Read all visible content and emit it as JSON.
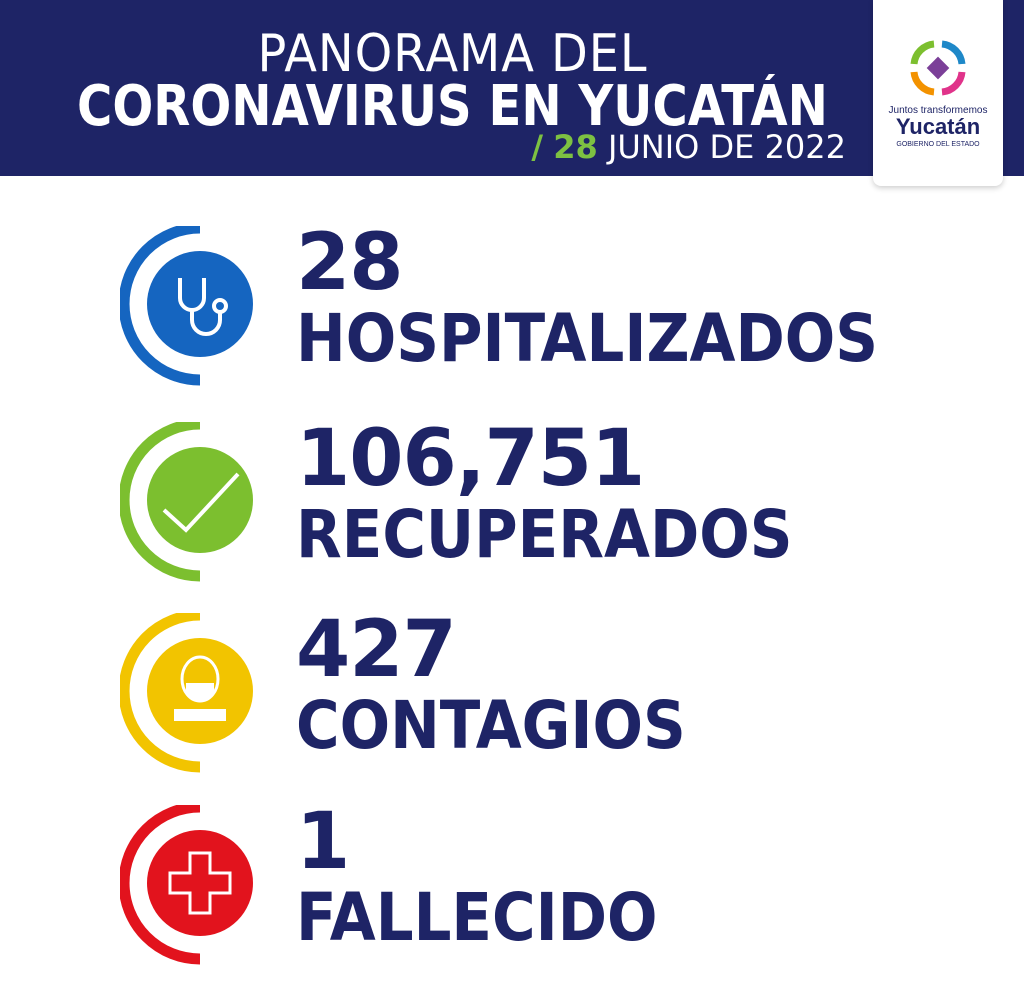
{
  "header": {
    "title_line1": "PANORAMA DEL",
    "title_line2": "CORONAVIRUS EN YUCATÁN",
    "date_slash": "/",
    "date_day": "28",
    "date_rest": "JUNIO DE 2022"
  },
  "logo": {
    "tagline": "Juntos transformemos",
    "name": "Yucatán",
    "subtitle": "GOBIERNO DEL ESTADO"
  },
  "colors": {
    "navy": "#1e2466",
    "green": "#7dc142",
    "blue": "#1565c0",
    "lime": "#7cbf2f",
    "yellow": "#f2c400",
    "red": "#e2131d"
  },
  "stats": [
    {
      "value": "28",
      "label": "HOSPITALIZADOS",
      "icon": "stethoscope-icon",
      "color": "#1565c0"
    },
    {
      "value": "106,751",
      "label": "RECUPERADOS",
      "icon": "checkmark-icon",
      "color": "#7cbf2f"
    },
    {
      "value": "427",
      "label": "CONTAGIOS",
      "icon": "masked-person-icon",
      "color": "#f2c400"
    },
    {
      "value": "1",
      "label": "FALLECIDO",
      "icon": "medical-cross-icon",
      "color": "#e2131d"
    }
  ]
}
